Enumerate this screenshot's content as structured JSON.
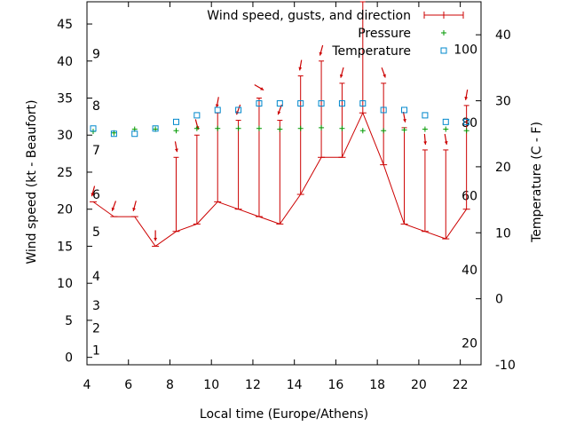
{
  "chart_data": {
    "type": "line",
    "xlabel": "Local time (Europe/Athens)",
    "ylabel_left": "Wind speed (kt - Beaufort)",
    "ylabel_right": "Temperature (C - F)",
    "xlim": [
      4,
      23
    ],
    "ylim_left": [
      -1,
      48
    ],
    "ylim_right": [
      -10,
      45
    ],
    "grid": false,
    "legend_position": "top-right",
    "x_ticks": [
      4,
      6,
      8,
      10,
      12,
      14,
      16,
      18,
      20,
      22
    ],
    "y_left_ticks": [
      0,
      5,
      10,
      15,
      20,
      25,
      30,
      35,
      40,
      45
    ],
    "y_right_ticks": [
      -10,
      0,
      10,
      20,
      30,
      40
    ],
    "beaufort_labels": [
      {
        "label": "1",
        "kt": 1
      },
      {
        "label": "2",
        "kt": 4
      },
      {
        "label": "3",
        "kt": 7
      },
      {
        "label": "4",
        "kt": 11
      },
      {
        "label": "5",
        "kt": 17
      },
      {
        "label": "6",
        "kt": 22
      },
      {
        "label": "7",
        "kt": 28
      },
      {
        "label": "8",
        "kt": 34
      },
      {
        "label": "9",
        "kt": 41
      }
    ],
    "fahrenheit_labels": [
      {
        "label": "20",
        "celsius": -6.7
      },
      {
        "label": "40",
        "celsius": 4.4
      },
      {
        "label": "60",
        "celsius": 15.6
      },
      {
        "label": "80",
        "celsius": 26.7
      },
      {
        "label": "100",
        "celsius": 37.8
      }
    ],
    "series": [
      {
        "name": "Wind speed, gusts, and direction",
        "color": "#cc0000",
        "x": [
          4.3,
          5.3,
          6.3,
          7.3,
          8.3,
          9.3,
          10.3,
          11.3,
          12.3,
          13.3,
          14.3,
          15.3,
          16.3,
          17.3,
          18.3,
          19.3,
          20.3,
          21.3,
          22.3
        ],
        "speed": [
          21,
          19,
          19,
          15,
          17,
          18,
          21,
          20,
          19,
          18,
          22,
          27,
          27,
          33,
          26,
          18,
          17,
          16,
          20
        ],
        "gust": [
          21,
          19,
          19,
          15,
          27,
          30,
          33,
          32,
          35,
          32,
          38,
          40,
          37,
          48,
          37,
          31,
          28,
          28,
          34
        ],
        "direction_deg": [
          15,
          20,
          15,
          0,
          350,
          345,
          10,
          20,
          300,
          20,
          10,
          15,
          15,
          10,
          340,
          350,
          355,
          350,
          10
        ]
      },
      {
        "name": "Pressure",
        "color": "#009900",
        "x": [
          4.3,
          5.3,
          6.3,
          7.3,
          8.3,
          9.3,
          10.3,
          11.3,
          12.3,
          13.3,
          14.3,
          15.3,
          16.3,
          17.3,
          18.3,
          19.3,
          20.3,
          21.3,
          22.3
        ],
        "values": [
          30.5,
          30.3,
          30.8,
          30.8,
          30.6,
          30.9,
          30.9,
          30.9,
          30.9,
          30.8,
          30.9,
          31.0,
          30.9,
          30.6,
          30.6,
          30.7,
          30.8,
          30.8,
          30.6
        ]
      },
      {
        "name": "Temperature",
        "color": "#0088cc",
        "x": [
          4.3,
          5.3,
          6.3,
          7.3,
          8.3,
          9.3,
          10.3,
          11.3,
          12.3,
          13.3,
          14.3,
          15.3,
          16.3,
          17.3,
          18.3,
          19.3,
          20.3,
          21.3,
          22.3
        ],
        "values_celsius": [
          25.8,
          25.0,
          25.0,
          25.8,
          26.8,
          27.8,
          28.6,
          28.6,
          29.6,
          29.6,
          29.6,
          29.6,
          29.6,
          29.6,
          28.6,
          28.6,
          27.8,
          26.8,
          26.8
        ]
      }
    ]
  }
}
